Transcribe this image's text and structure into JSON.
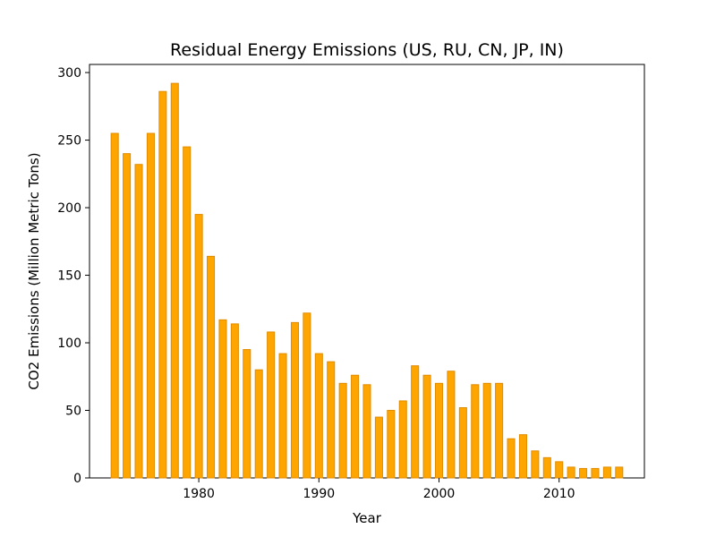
{
  "chart_data": {
    "type": "bar",
    "title": "Residual Energy Emissions (US, RU, CN, JP, IN)",
    "xlabel": "Year",
    "ylabel": "CO2 Emissions (Million Metric Tons)",
    "x": [
      1973,
      1974,
      1975,
      1976,
      1977,
      1978,
      1979,
      1980,
      1981,
      1982,
      1983,
      1984,
      1985,
      1986,
      1987,
      1988,
      1989,
      1990,
      1991,
      1992,
      1993,
      1994,
      1995,
      1996,
      1997,
      1998,
      1999,
      2000,
      2001,
      2002,
      2003,
      2004,
      2005,
      2006,
      2007,
      2008,
      2009,
      2010,
      2011,
      2012,
      2013,
      2014,
      2015
    ],
    "values": [
      255,
      240,
      232,
      255,
      286,
      292,
      245,
      195,
      164,
      117,
      114,
      95,
      80,
      108,
      92,
      115,
      122,
      92,
      86,
      70,
      76,
      69,
      45,
      50,
      57,
      83,
      76,
      70,
      79,
      52,
      69,
      70,
      70,
      29,
      32,
      20,
      15,
      12,
      8,
      7,
      7,
      8,
      8
    ],
    "xlim": [
      1970.9,
      2017.1
    ],
    "ylim": [
      0,
      306
    ],
    "xticks": [
      1980,
      1990,
      2000,
      2010
    ],
    "yticks": [
      0,
      50,
      100,
      150,
      200,
      250,
      300
    ],
    "bar_color": "#ffa500",
    "bar_edge_color": "#e08c00",
    "grid": false
  }
}
